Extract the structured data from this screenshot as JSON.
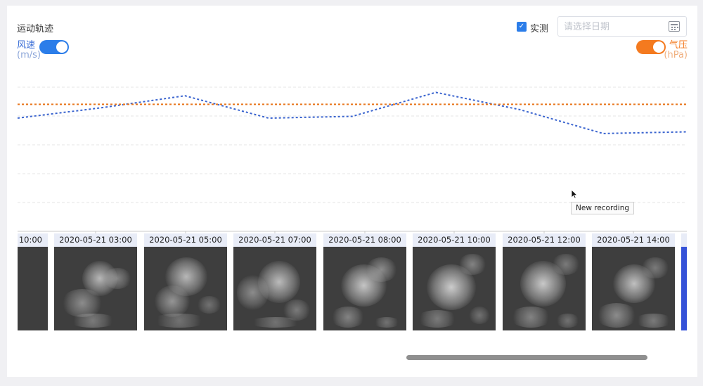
{
  "header": {
    "title": "运动轨迹"
  },
  "controls": {
    "wind_label": "风速",
    "wind_unit": "(m/s)",
    "pressure_label": "气压",
    "pressure_unit": "(hPa)",
    "measured_label": "实测",
    "measured_checked": true,
    "date_placeholder": "请选择日期"
  },
  "colors": {
    "wind": "#3a64cf",
    "pressure": "#e8761c",
    "toggle_left": "#2b7de9",
    "toggle_right": "#f47a1f"
  },
  "chart_data": {
    "type": "line",
    "x": [
      "10:00",
      "03:00",
      "05:00",
      "07:00",
      "08:00",
      "10:00",
      "12:00",
      "14:00",
      "—"
    ],
    "series": [
      {
        "name": "风速",
        "values": [
          0.66,
          0.72,
          0.79,
          0.66,
          0.67,
          0.81,
          0.71,
          0.57,
          0.58
        ]
      },
      {
        "name": "气压",
        "values": [
          0.74,
          0.74,
          0.74,
          0.74,
          0.74,
          0.74,
          0.74,
          0.74,
          0.74
        ]
      }
    ],
    "ylim": [
      0,
      1
    ],
    "grid": true,
    "legend": "none"
  },
  "thumbnails": [
    {
      "label": "10:00"
    },
    {
      "label": "2020-05-21 03:00"
    },
    {
      "label": "2020-05-21 05:00"
    },
    {
      "label": "2020-05-21 07:00"
    },
    {
      "label": "2020-05-21 08:00"
    },
    {
      "label": "2020-05-21 10:00"
    },
    {
      "label": "2020-05-21 12:00"
    },
    {
      "label": "2020-05-21 14:00"
    }
  ],
  "tooltip": {
    "text": "New recording"
  }
}
